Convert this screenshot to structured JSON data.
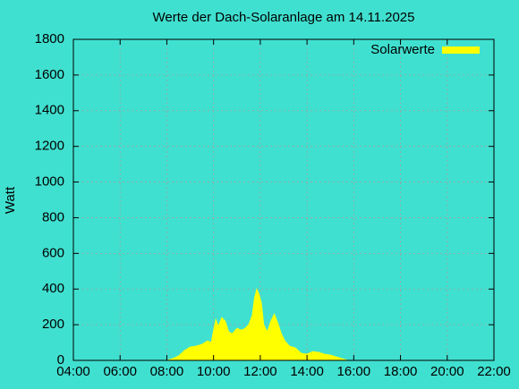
{
  "chart_data": {
    "type": "area",
    "title": "Werte der Dach-Solaranlage am 14.11.2025",
    "y_label": "Watt",
    "x": [
      8.0,
      8.25,
      8.5,
      8.75,
      9.0,
      9.25,
      9.5,
      9.75,
      9.9,
      10.0,
      10.1,
      10.2,
      10.35,
      10.5,
      10.65,
      10.8,
      11.0,
      11.2,
      11.35,
      11.5,
      11.65,
      11.75,
      11.85,
      11.95,
      12.05,
      12.15,
      12.3,
      12.45,
      12.6,
      12.75,
      12.9,
      13.05,
      13.25,
      13.5,
      13.75,
      14.0,
      14.25,
      14.5,
      14.75,
      15.0,
      15.25,
      15.5,
      15.75
    ],
    "series": [
      {
        "name": "Solarwerte",
        "color": "#ffff00",
        "values": [
          0,
          10,
          25,
          55,
          75,
          80,
          90,
          110,
          100,
          170,
          230,
          190,
          240,
          220,
          160,
          150,
          180,
          170,
          180,
          200,
          250,
          350,
          400,
          370,
          320,
          200,
          160,
          220,
          260,
          210,
          150,
          110,
          80,
          70,
          40,
          35,
          50,
          45,
          35,
          30,
          20,
          10,
          0
        ]
      }
    ],
    "xlim": [
      4,
      22
    ],
    "xticks": [
      {
        "value": 4,
        "label": "04:00"
      },
      {
        "value": 6,
        "label": "06:00"
      },
      {
        "value": 8,
        "label": "08:00"
      },
      {
        "value": 10,
        "label": "10:00"
      },
      {
        "value": 12,
        "label": "12:00"
      },
      {
        "value": 14,
        "label": "14:00"
      },
      {
        "value": 16,
        "label": "16:00"
      },
      {
        "value": 18,
        "label": "18:00"
      },
      {
        "value": 20,
        "label": "20:00"
      },
      {
        "value": 22,
        "label": "22:00"
      }
    ],
    "ylim": [
      0,
      1800
    ],
    "yticks": [
      0,
      200,
      400,
      600,
      800,
      1000,
      1200,
      1400,
      1600,
      1800
    ],
    "grid": true,
    "legend": "top-right"
  }
}
